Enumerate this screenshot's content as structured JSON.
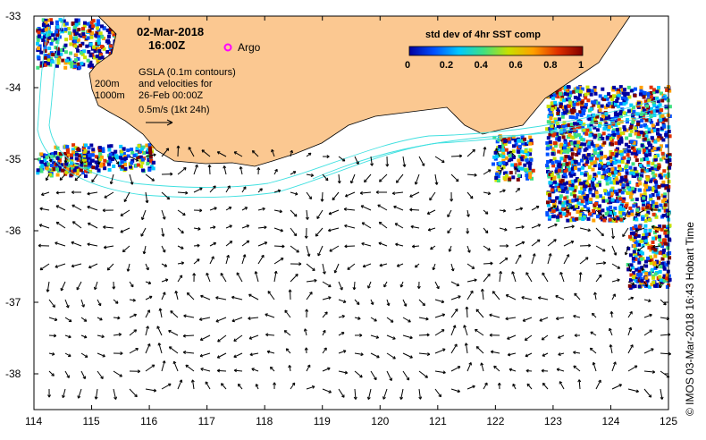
{
  "map": {
    "date_line": "02-Mar-2018",
    "time_line": "16:00Z",
    "argo_label": "Argo",
    "isobath_labels": [
      "200m",
      "1000m"
    ],
    "info_lines": [
      "GSLA (0.1m contours)",
      "and velocities for",
      "26-Feb 00:00Z",
      "0.5m/s (1kt 24h)"
    ],
    "colorbar": {
      "title": "std dev of 4hr SST comp",
      "ticks": [
        "0",
        "0.2",
        "0.4",
        "0.6",
        "0.8",
        "1"
      ],
      "colors": [
        "#0000a0",
        "#0050ff",
        "#00c8ff",
        "#40e080",
        "#c8e000",
        "#ffa000",
        "#e03000",
        "#800000"
      ]
    },
    "x_ticks": [
      "114",
      "115",
      "116",
      "117",
      "118",
      "119",
      "120",
      "121",
      "122",
      "123",
      "124",
      "125"
    ],
    "y_ticks": [
      "-33",
      "-34",
      "-35",
      "-36",
      "-37",
      "-38"
    ],
    "credit": "©  IMOS 03-Mar-2018 16:43 Hobart Time",
    "colors": {
      "land": "#fbc891",
      "isobath": "#40e0e0",
      "argo": "#ff00ff",
      "arrow": "#000000"
    }
  }
}
